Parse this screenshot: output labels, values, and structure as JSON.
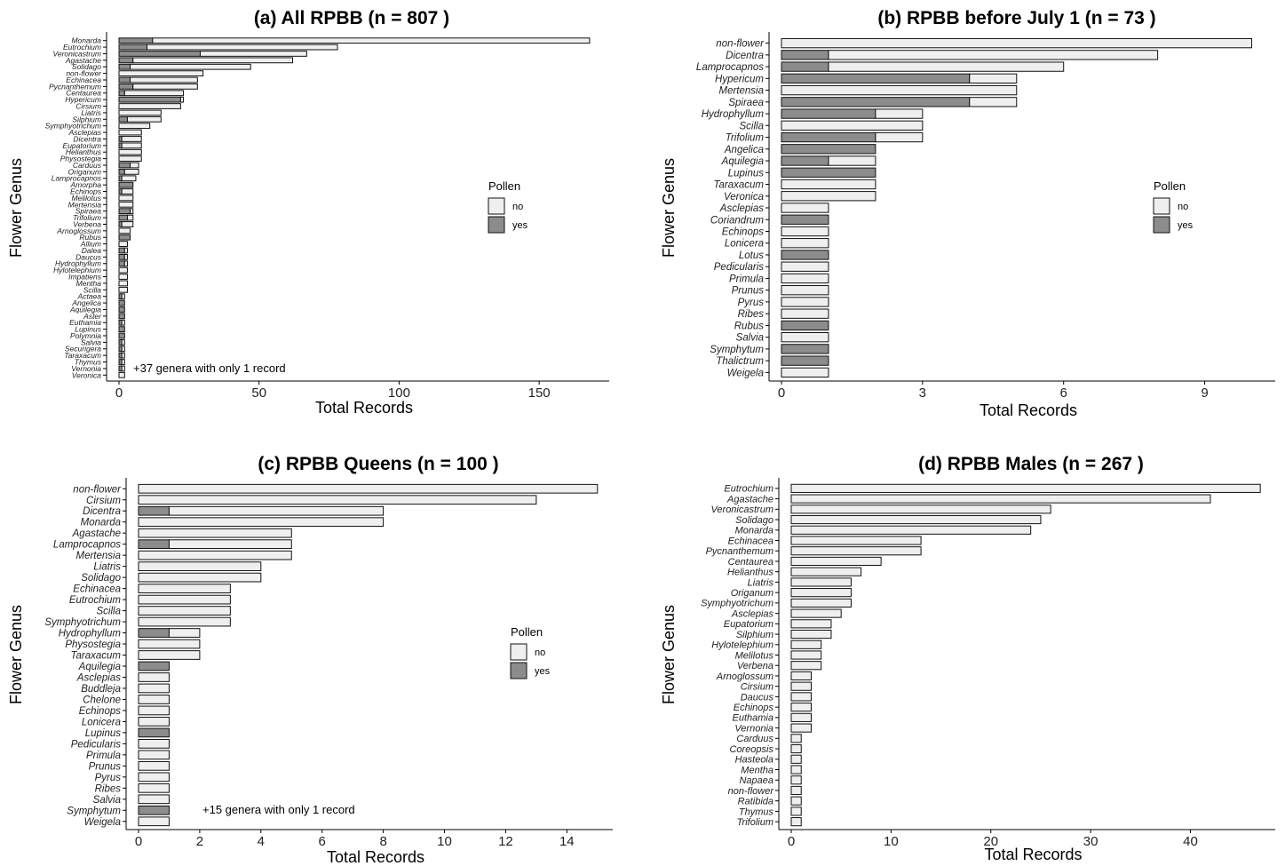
{
  "legend": {
    "title": "Pollen",
    "labels": [
      "no",
      "yes"
    ]
  },
  "colors": {
    "no": "#efefef",
    "yes": "#8c8c8c",
    "stroke": "#111111"
  },
  "chart_data": [
    {
      "type": "bar",
      "orientation": "horizontal",
      "stacked": true,
      "title": "(a) All RPBB (n = 807 )",
      "xlabel": "Total Records",
      "ylabel": "Flower Genus",
      "xlim": [
        0,
        175
      ],
      "xticks": [
        0,
        50,
        100,
        150
      ],
      "annotation": "+37 genera with only 1 record",
      "categories": [
        "Monarda",
        "Eutrochium",
        "Veronicastrum",
        "Agastache",
        "Solidago",
        "non-flower",
        "Echinacea",
        "Pycnanthemum",
        "Centaurea",
        "Hypericum",
        "Cirsium",
        "Liatris",
        "Silphium",
        "Symphyotrichum",
        "Asclepias",
        "Dicentra",
        "Eupatorium",
        "Helianthus",
        "Physostegia",
        "Carduus",
        "Origanum",
        "Lamprocapnos",
        "Amorpha",
        "Echinops",
        "Melilotus",
        "Mertensia",
        "Spiraea",
        "Trifolium",
        "Verbena",
        "Arnoglossum",
        "Rubus",
        "Allium",
        "Dalea",
        "Daucus",
        "Hydrophyllum",
        "Hylotelephium",
        "Impatiens",
        "Mentha",
        "Scilla",
        "Actaea",
        "Angelica",
        "Aquilegia",
        "Aster",
        "Euthamia",
        "Lupinus",
        "Polymnia",
        "Salvia",
        "Securigera",
        "Taraxacum",
        "Thymus",
        "Vernonia",
        "Veronica"
      ],
      "series": [
        {
          "name": "yes",
          "values": [
            12,
            10,
            29,
            5,
            4,
            0,
            4,
            5,
            2,
            22,
            0,
            0,
            3,
            0,
            0,
            1,
            1,
            0,
            0,
            4,
            2,
            1,
            5,
            1,
            0,
            0,
            4,
            3,
            1,
            0,
            4,
            0,
            2,
            2,
            2,
            0,
            0,
            0,
            0,
            1,
            2,
            2,
            2,
            1,
            2,
            2,
            1,
            1,
            1,
            1,
            1,
            0
          ]
        },
        {
          "name": "no",
          "values": [
            156,
            68,
            38,
            57,
            43,
            30,
            24,
            23,
            21,
            1,
            22,
            15,
            12,
            11,
            8,
            7,
            7,
            8,
            8,
            3,
            5,
            5,
            0,
            4,
            5,
            5,
            1,
            2,
            4,
            4,
            0,
            3,
            1,
            1,
            1,
            3,
            3,
            3,
            3,
            1,
            0,
            0,
            0,
            1,
            0,
            0,
            1,
            1,
            1,
            1,
            1,
            2
          ]
        }
      ]
    },
    {
      "type": "bar",
      "orientation": "horizontal",
      "stacked": true,
      "title": "(b) RPBB before July 1 (n = 73 )",
      "xlabel": "Total Records",
      "ylabel": "Flower Genus",
      "xlim": [
        0,
        10.5
      ],
      "xticks": [
        0,
        3,
        6,
        9
      ],
      "annotation": "",
      "categories": [
        "non-flower",
        "Dicentra",
        "Lamprocapnos",
        "Hypericum",
        "Mertensia",
        "Spiraea",
        "Hydrophyllum",
        "Scilla",
        "Trifolium",
        "Angelica",
        "Aquilegia",
        "Lupinus",
        "Taraxacum",
        "Veronica",
        "Asclepias",
        "Coriandrum",
        "Echinops",
        "Lonicera",
        "Lotus",
        "Pedicularis",
        "Primula",
        "Prunus",
        "Pyrus",
        "Ribes",
        "Rubus",
        "Salvia",
        "Symphytum",
        "Thalictrum",
        "Weigela"
      ],
      "series": [
        {
          "name": "yes",
          "values": [
            0,
            1,
            1,
            4,
            0,
            4,
            2,
            0,
            2,
            2,
            1,
            2,
            0,
            0,
            0,
            1,
            0,
            0,
            1,
            0,
            0,
            0,
            0,
            0,
            1,
            0,
            1,
            1,
            0
          ]
        },
        {
          "name": "no",
          "values": [
            10,
            7,
            5,
            1,
            5,
            1,
            1,
            3,
            1,
            0,
            1,
            0,
            2,
            2,
            1,
            0,
            1,
            1,
            0,
            1,
            1,
            1,
            1,
            1,
            0,
            1,
            0,
            0,
            1
          ]
        }
      ]
    },
    {
      "type": "bar",
      "orientation": "horizontal",
      "stacked": true,
      "title": "(c) RPBB Queens (n = 100 )",
      "xlabel": "Total Records",
      "ylabel": "Flower Genus",
      "xlim": [
        0,
        15.5
      ],
      "xticks": [
        0,
        2,
        4,
        6,
        8,
        10,
        12,
        14
      ],
      "annotation": "+15 genera with only 1 record",
      "categories": [
        "non-flower",
        "Cirsium",
        "Dicentra",
        "Monarda",
        "Agastache",
        "Lamprocapnos",
        "Mertensia",
        "Liatris",
        "Solidago",
        "Echinacea",
        "Eutrochium",
        "Scilla",
        "Symphyotrichum",
        "Hydrophyllum",
        "Physostegia",
        "Taraxacum",
        "Aquilegia",
        "Asclepias",
        "Buddleja",
        "Chelone",
        "Echinops",
        "Lonicera",
        "Lupinus",
        "Pedicularis",
        "Primula",
        "Prunus",
        "Pyrus",
        "Ribes",
        "Salvia",
        "Symphytum",
        "Weigela"
      ],
      "series": [
        {
          "name": "yes",
          "values": [
            0,
            0,
            1,
            0,
            0,
            1,
            0,
            0,
            0,
            0,
            0,
            0,
            0,
            1,
            0,
            0,
            1,
            0,
            0,
            0,
            0,
            0,
            1,
            0,
            0,
            0,
            0,
            0,
            0,
            1,
            0
          ]
        },
        {
          "name": "no",
          "values": [
            15,
            13,
            7,
            8,
            5,
            4,
            5,
            4,
            4,
            3,
            3,
            3,
            3,
            1,
            2,
            2,
            0,
            1,
            1,
            1,
            1,
            1,
            0,
            1,
            1,
            1,
            1,
            1,
            1,
            0,
            1
          ]
        }
      ]
    },
    {
      "type": "bar",
      "orientation": "horizontal",
      "stacked": true,
      "title": "(d) RPBB Males (n = 267 )",
      "xlabel": "Total Records",
      "ylabel": "Flower Genus",
      "xlim": [
        0,
        48.5
      ],
      "xticks": [
        0,
        10,
        20,
        30,
        40
      ],
      "annotation": "",
      "categories": [
        "Eutrochium",
        "Agastache",
        "Veronicastrum",
        "Solidago",
        "Monarda",
        "Echinacea",
        "Pycnanthemum",
        "Centaurea",
        "Helianthus",
        "Liatris",
        "Origanum",
        "Symphyotrichum",
        "Asclepias",
        "Eupatorium",
        "Silphium",
        "Hylotelephium",
        "Melilotus",
        "Verbena",
        "Arnoglossum",
        "Cirsium",
        "Daucus",
        "Echinops",
        "Euthamia",
        "Vernonia",
        "Carduus",
        "Coreopsis",
        "Hasteola",
        "Mentha",
        "Napaea",
        "non-flower",
        "Ratibida",
        "Thymus",
        "Trifolium"
      ],
      "series": [
        {
          "name": "yes",
          "values": [
            0,
            0,
            0,
            0,
            0,
            0,
            0,
            0,
            0,
            0,
            0,
            0,
            0,
            0,
            0,
            0,
            0,
            0,
            0,
            0,
            0,
            0,
            0,
            0,
            0,
            0,
            0,
            0,
            0,
            0,
            0,
            0,
            0
          ]
        },
        {
          "name": "no",
          "values": [
            47,
            42,
            26,
            25,
            24,
            13,
            13,
            9,
            7,
            6,
            6,
            6,
            5,
            4,
            4,
            3,
            3,
            3,
            2,
            2,
            2,
            2,
            2,
            2,
            1,
            1,
            1,
            1,
            1,
            1,
            1,
            1,
            1
          ]
        }
      ]
    }
  ]
}
